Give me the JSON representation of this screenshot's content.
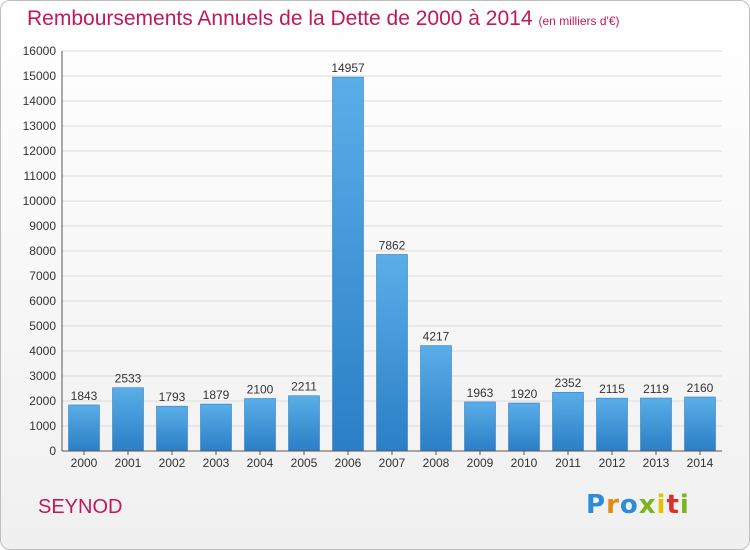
{
  "header": {
    "title": "Remboursements Annuels de la Dette de 2000 à 2014",
    "unit": "(en milliers d'€)"
  },
  "footer": {
    "commune": "SEYNOD",
    "logo": "Proxiti"
  },
  "colors": {
    "title": "#c2185b",
    "bar_top": "#5aaee8",
    "bar_bottom": "#2a7fc6"
  },
  "chart_data": {
    "type": "bar",
    "title": "Remboursements Annuels de la Dette de 2000 à 2014",
    "xlabel": "",
    "ylabel": "",
    "categories": [
      "2000",
      "2001",
      "2002",
      "2003",
      "2004",
      "2005",
      "2006",
      "2007",
      "2008",
      "2009",
      "2010",
      "2011",
      "2012",
      "2013",
      "2014"
    ],
    "values": [
      1843,
      2533,
      1793,
      1879,
      2100,
      2211,
      14957,
      7862,
      4217,
      1963,
      1920,
      2352,
      2115,
      2119,
      2160
    ],
    "ylim": [
      0,
      16000
    ],
    "yticks": [
      0,
      1000,
      2000,
      3000,
      4000,
      5000,
      6000,
      7000,
      8000,
      9000,
      10000,
      11000,
      12000,
      13000,
      14000,
      15000,
      16000
    ],
    "grid": true
  }
}
